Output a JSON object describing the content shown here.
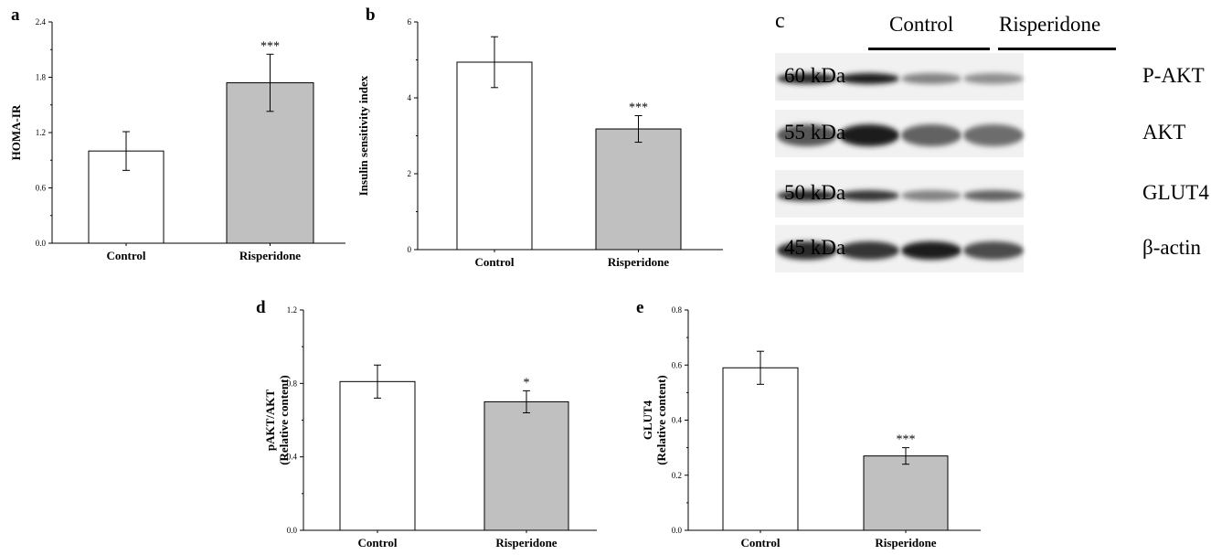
{
  "chart_data": [
    {
      "panel": "a",
      "type": "bar",
      "categories": [
        "Control",
        "Risperidone"
      ],
      "values": [
        1.0,
        1.74
      ],
      "errors": [
        0.21,
        0.31
      ],
      "significance": [
        "",
        "***"
      ],
      "bar_colors": [
        "#ffffff",
        "#c0c0c0"
      ],
      "ylabel": "HOMA-IR",
      "ylim": [
        0,
        2.4
      ],
      "yticks": [
        "0.0",
        "0.6",
        "1.2",
        "1.8",
        "2.4"
      ],
      "ytick_values": [
        0,
        0.6,
        1.2,
        1.8,
        2.4
      ]
    },
    {
      "panel": "b",
      "type": "bar",
      "categories": [
        "Control",
        "Risperidone"
      ],
      "values": [
        4.94,
        3.18
      ],
      "errors": [
        0.67,
        0.35
      ],
      "significance": [
        "",
        "***"
      ],
      "bar_colors": [
        "#ffffff",
        "#c0c0c0"
      ],
      "ylabel": "Insulin sensitivity index",
      "ylim": [
        0,
        6
      ],
      "yticks": [
        "0",
        "2",
        "4",
        "6"
      ],
      "ytick_values": [
        0,
        2,
        4,
        6
      ]
    },
    {
      "panel": "d",
      "type": "bar",
      "categories": [
        "Control",
        "Risperidone"
      ],
      "values": [
        0.81,
        0.7
      ],
      "errors": [
        0.09,
        0.06
      ],
      "significance": [
        "",
        "*"
      ],
      "bar_colors": [
        "#ffffff",
        "#c0c0c0"
      ],
      "ylabel": "pAKT/AKT",
      "ylabel2": "(Relative content)",
      "ylim": [
        0,
        1.2
      ],
      "yticks": [
        "0.0",
        "0.4",
        "0.8",
        "1.2"
      ],
      "ytick_values": [
        0,
        0.4,
        0.8,
        1.2
      ]
    },
    {
      "panel": "e",
      "type": "bar",
      "categories": [
        "Control",
        "Risperidone"
      ],
      "values": [
        0.59,
        0.27
      ],
      "errors": [
        0.06,
        0.03
      ],
      "significance": [
        "",
        "***"
      ],
      "bar_colors": [
        "#ffffff",
        "#c0c0c0"
      ],
      "ylabel": "GLUT4",
      "ylabel2": "(Relative content)",
      "ylim": [
        0,
        0.8
      ],
      "yticks": [
        "0.0",
        "0.2",
        "0.4",
        "0.6",
        "0.8"
      ],
      "ytick_values": [
        0,
        0.2,
        0.4,
        0.6,
        0.8
      ]
    }
  ],
  "blot": {
    "panel": "c",
    "groups": [
      "Control",
      "Risperidone"
    ],
    "rows": [
      {
        "marker": "60 kDa",
        "protein": "P-AKT",
        "intensities": [
          0.95,
          1.0,
          0.55,
          0.5
        ]
      },
      {
        "marker": "55 kDa",
        "protein": "AKT",
        "intensities": [
          0.75,
          1.0,
          0.7,
          0.65
        ]
      },
      {
        "marker": "50 kDa",
        "protein": "GLUT4",
        "intensities": [
          0.95,
          0.9,
          0.55,
          0.7
        ]
      },
      {
        "marker": "45 kDa",
        "protein": "β-actin",
        "intensities": [
          0.95,
          0.9,
          1.0,
          0.8
        ]
      }
    ]
  }
}
